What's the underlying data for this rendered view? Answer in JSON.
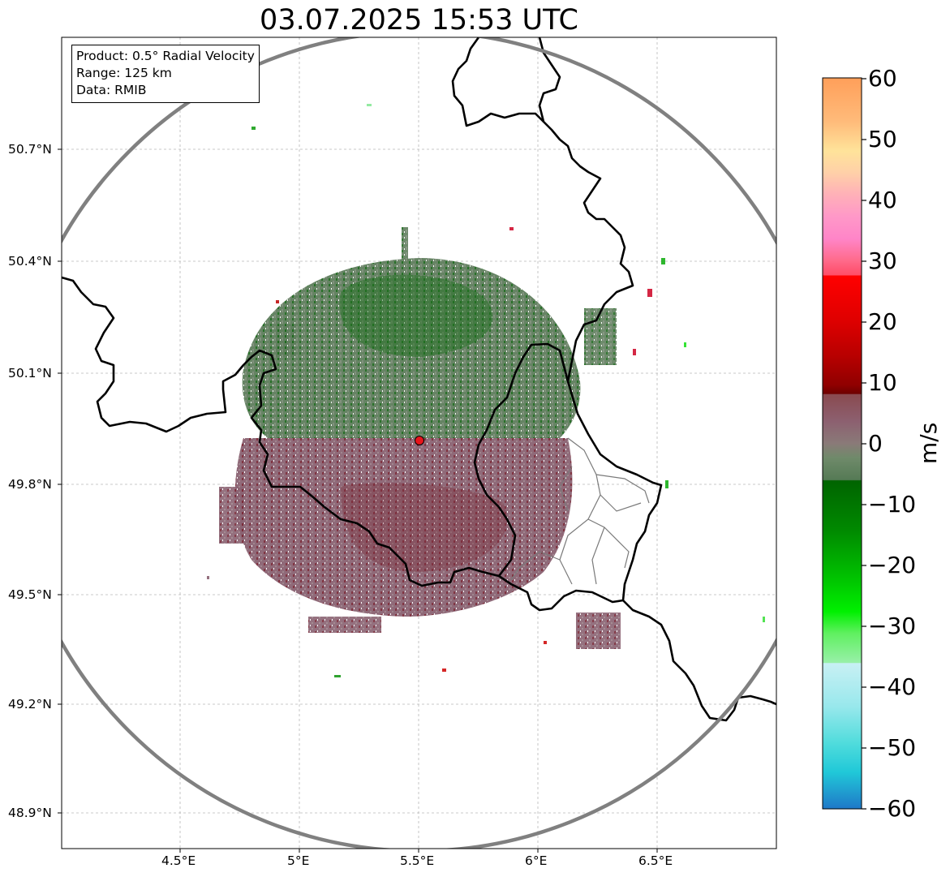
{
  "title": "03.07.2025 15:53 UTC",
  "info_box": {
    "product": "Product: 0.5° Radial Velocity",
    "range": "Range: 125 km",
    "data": "Data: RMIB"
  },
  "axes": {
    "lat_labels": [
      "50.7°N",
      "50.4°N",
      "50.1°N",
      "49.8°N",
      "49.5°N",
      "49.2°N",
      "48.9°N"
    ],
    "lon_labels": [
      "4.5°E",
      "5°E",
      "5.5°E",
      "6°E",
      "6.5°E"
    ]
  },
  "colorbar": {
    "unit": "m/s",
    "ticks": [
      "60",
      "50",
      "40",
      "30",
      "20",
      "10",
      "0",
      "−10",
      "−20",
      "−30",
      "−40",
      "−50",
      "−60"
    ],
    "min": -60,
    "max": 60
  },
  "radar": {
    "site_color": "#e8141b",
    "range_ring_color": "#808080"
  }
}
